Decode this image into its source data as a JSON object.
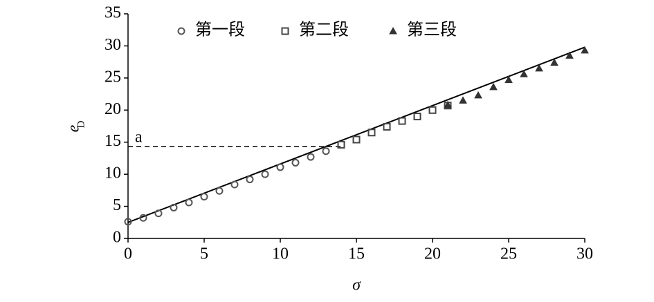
{
  "chart_data": {
    "type": "scatter",
    "xlabel": "σ",
    "ylabel": {
      "text": "e",
      "subscript": "D"
    },
    "xlim": [
      0,
      30
    ],
    "ylim": [
      0,
      35
    ],
    "xticks": [
      0,
      5,
      10,
      15,
      20,
      25,
      30
    ],
    "yticks": [
      0,
      5,
      10,
      15,
      20,
      25,
      30,
      35
    ],
    "series": [
      {
        "name": "第一段",
        "marker": "circle",
        "color": "#555555",
        "x": [
          0,
          1,
          2,
          3,
          4,
          5,
          6,
          7,
          8,
          9,
          10,
          11,
          12,
          13
        ],
        "values": [
          2.6,
          3.2,
          3.9,
          4.8,
          5.6,
          6.5,
          7.4,
          8.4,
          9.2,
          10.0,
          11.1,
          11.8,
          12.7,
          13.6
        ]
      },
      {
        "name": "第二段",
        "marker": "square",
        "color": "#444444",
        "x": [
          14,
          15,
          16,
          17,
          18,
          19,
          20,
          21
        ],
        "values": [
          14.6,
          15.4,
          16.5,
          17.4,
          18.3,
          19.0,
          20.0,
          20.7
        ]
      },
      {
        "name": "第三段",
        "marker": "triangle",
        "color": "#333333",
        "x": [
          21,
          22,
          23,
          24,
          25,
          26,
          27,
          28,
          29,
          30
        ],
        "values": [
          20.8,
          21.5,
          22.3,
          23.6,
          24.7,
          25.6,
          26.5,
          27.4,
          28.5,
          29.3
        ]
      }
    ],
    "fit_line": {
      "x": [
        0,
        30
      ],
      "values": [
        2.5,
        29.8
      ],
      "color": "#000000"
    },
    "reference_line": {
      "y": 14.3,
      "x_end": 14,
      "label": "a"
    }
  }
}
